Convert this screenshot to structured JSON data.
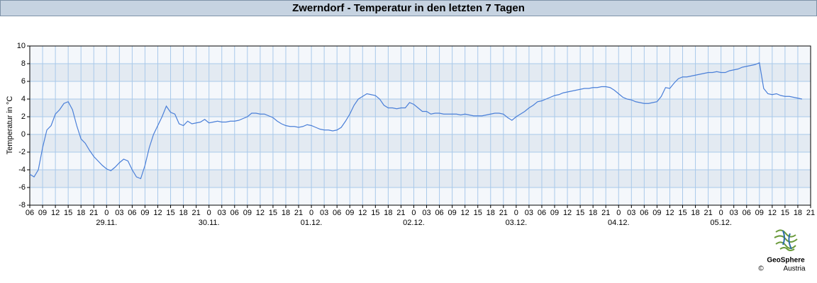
{
  "chart_data": {
    "type": "line",
    "title": "Zwerndorf - Temperatur in den letzten 7 Tagen",
    "ylabel": "Temperatur in °C",
    "color": "#4a7fd8",
    "grid": true,
    "ylim": [
      -8,
      10
    ],
    "yticks": [
      -8,
      -6,
      -4,
      -2,
      0,
      2,
      4,
      6,
      8,
      10
    ],
    "xlim": [
      6,
      189
    ],
    "xticks": [
      {
        "value": 6,
        "label": "06"
      },
      {
        "value": 9,
        "label": "09"
      },
      {
        "value": 12,
        "label": "12"
      },
      {
        "value": 15,
        "label": "15"
      },
      {
        "value": 18,
        "label": "18"
      },
      {
        "value": 21,
        "label": "21"
      },
      {
        "value": 24,
        "label": "0"
      },
      {
        "value": 27,
        "label": "03"
      },
      {
        "value": 30,
        "label": "06"
      },
      {
        "value": 33,
        "label": "09"
      },
      {
        "value": 36,
        "label": "12"
      },
      {
        "value": 39,
        "label": "15"
      },
      {
        "value": 42,
        "label": "18"
      },
      {
        "value": 45,
        "label": "21"
      },
      {
        "value": 48,
        "label": "0"
      },
      {
        "value": 51,
        "label": "03"
      },
      {
        "value": 54,
        "label": "06"
      },
      {
        "value": 57,
        "label": "09"
      },
      {
        "value": 60,
        "label": "12"
      },
      {
        "value": 63,
        "label": "15"
      },
      {
        "value": 66,
        "label": "18"
      },
      {
        "value": 69,
        "label": "21"
      },
      {
        "value": 72,
        "label": "0"
      },
      {
        "value": 75,
        "label": "03"
      },
      {
        "value": 78,
        "label": "06"
      },
      {
        "value": 81,
        "label": "09"
      },
      {
        "value": 84,
        "label": "12"
      },
      {
        "value": 87,
        "label": "15"
      },
      {
        "value": 90,
        "label": "18"
      },
      {
        "value": 93,
        "label": "21"
      },
      {
        "value": 96,
        "label": "0"
      },
      {
        "value": 99,
        "label": "03"
      },
      {
        "value": 102,
        "label": "06"
      },
      {
        "value": 105,
        "label": "09"
      },
      {
        "value": 108,
        "label": "12"
      },
      {
        "value": 111,
        "label": "15"
      },
      {
        "value": 114,
        "label": "18"
      },
      {
        "value": 117,
        "label": "21"
      },
      {
        "value": 120,
        "label": "0"
      },
      {
        "value": 123,
        "label": "03"
      },
      {
        "value": 126,
        "label": "06"
      },
      {
        "value": 129,
        "label": "09"
      },
      {
        "value": 132,
        "label": "12"
      },
      {
        "value": 135,
        "label": "15"
      },
      {
        "value": 138,
        "label": "18"
      },
      {
        "value": 141,
        "label": "21"
      },
      {
        "value": 144,
        "label": "0"
      },
      {
        "value": 147,
        "label": "03"
      },
      {
        "value": 150,
        "label": "06"
      },
      {
        "value": 153,
        "label": "09"
      },
      {
        "value": 156,
        "label": "12"
      },
      {
        "value": 159,
        "label": "15"
      },
      {
        "value": 162,
        "label": "18"
      },
      {
        "value": 165,
        "label": "21"
      },
      {
        "value": 168,
        "label": "0"
      },
      {
        "value": 171,
        "label": "03"
      },
      {
        "value": 174,
        "label": "06"
      },
      {
        "value": 177,
        "label": "09"
      },
      {
        "value": 180,
        "label": "12"
      },
      {
        "value": 183,
        "label": "15"
      },
      {
        "value": 186,
        "label": "18"
      },
      {
        "value": 189,
        "label": "21"
      }
    ],
    "xdates": [
      {
        "value": 24,
        "label": "29.11."
      },
      {
        "value": 48,
        "label": "30.11."
      },
      {
        "value": 72,
        "label": "01.12."
      },
      {
        "value": 96,
        "label": "02.12."
      },
      {
        "value": 120,
        "label": "03.12."
      },
      {
        "value": 144,
        "label": "04.12."
      },
      {
        "value": 168,
        "label": "05.12."
      }
    ],
    "x": [
      6,
      7,
      8,
      9,
      10,
      11,
      12,
      13,
      14,
      15,
      16,
      17,
      18,
      19,
      20,
      21,
      22,
      23,
      24,
      25,
      26,
      27,
      28,
      29,
      30,
      31,
      32,
      33,
      34,
      35,
      36,
      37,
      38,
      39,
      40,
      41,
      42,
      43,
      44,
      45,
      46,
      47,
      48,
      49,
      50,
      51,
      52,
      53,
      54,
      55,
      56,
      57,
      58,
      59,
      60,
      61,
      62,
      63,
      64,
      65,
      66,
      67,
      68,
      69,
      70,
      71,
      72,
      73,
      74,
      75,
      76,
      77,
      78,
      79,
      80,
      81,
      82,
      83,
      84,
      85,
      86,
      87,
      88,
      89,
      90,
      91,
      92,
      93,
      94,
      95,
      96,
      97,
      98,
      99,
      100,
      101,
      102,
      103,
      104,
      105,
      106,
      107,
      108,
      109,
      110,
      111,
      112,
      113,
      114,
      115,
      116,
      117,
      118,
      119,
      120,
      121,
      122,
      123,
      124,
      125,
      126,
      127,
      128,
      129,
      130,
      131,
      132,
      133,
      134,
      135,
      136,
      137,
      138,
      139,
      140,
      141,
      142,
      143,
      144,
      145,
      146,
      147,
      148,
      149,
      150,
      151,
      152,
      153,
      154,
      155,
      156,
      157,
      158,
      159,
      160,
      161,
      162,
      163,
      164,
      165,
      166,
      167,
      168,
      169,
      170,
      171,
      172,
      173,
      174,
      175,
      176,
      177,
      178,
      179,
      180,
      181,
      182,
      183,
      184,
      185,
      186,
      187
    ],
    "values": [
      -4.5,
      -4.8,
      -4,
      -1.5,
      0.5,
      1,
      2.3,
      2.8,
      3.5,
      3.7,
      2.8,
      1,
      -0.5,
      -1,
      -1.8,
      -2.5,
      -3,
      -3.5,
      -3.9,
      -4.1,
      -3.7,
      -3.2,
      -2.8,
      -3,
      -4,
      -4.8,
      -5,
      -3.5,
      -1.5,
      0,
      1,
      2,
      3.2,
      2.5,
      2.3,
      1.2,
      1,
      1.5,
      1.2,
      1.3,
      1.4,
      1.7,
      1.3,
      1.4,
      1.5,
      1.4,
      1.4,
      1.5,
      1.5,
      1.6,
      1.8,
      2.0,
      2.4,
      2.4,
      2.3,
      2.3,
      2.1,
      1.9,
      1.5,
      1.2,
      1.0,
      0.9,
      0.9,
      0.8,
      0.9,
      1.1,
      1.0,
      0.8,
      0.6,
      0.5,
      0.5,
      0.4,
      0.5,
      0.8,
      1.5,
      2.3,
      3.3,
      4.0,
      4.3,
      4.6,
      4.5,
      4.4,
      4.0,
      3.3,
      3.0,
      3.0,
      2.9,
      3.0,
      3.0,
      3.6,
      3.4,
      3.0,
      2.6,
      2.6,
      2.3,
      2.4,
      2.4,
      2.3,
      2.3,
      2.3,
      2.3,
      2.2,
      2.3,
      2.2,
      2.1,
      2.1,
      2.1,
      2.2,
      2.3,
      2.4,
      2.4,
      2.3,
      1.9,
      1.6,
      2.0,
      2.3,
      2.6,
      3.0,
      3.3,
      3.7,
      3.8,
      4.0,
      4.2,
      4.4,
      4.5,
      4.7,
      4.8,
      4.9,
      5.0,
      5.1,
      5.2,
      5.2,
      5.3,
      5.3,
      5.4,
      5.4,
      5.3,
      5.0,
      4.6,
      4.2,
      4.0,
      3.9,
      3.7,
      3.6,
      3.5,
      3.5,
      3.6,
      3.7,
      4.3,
      5.3,
      5.2,
      5.8,
      6.3,
      6.5,
      6.5,
      6.6,
      6.7,
      6.8,
      6.9,
      7.0,
      7.0,
      7.1,
      7.0,
      7.0,
      7.2,
      7.3,
      7.4,
      7.6,
      7.7,
      7.8,
      7.9,
      8.1,
      5.2,
      4.6,
      4.5,
      4.6,
      4.4,
      4.3,
      4.3,
      4.2,
      4.1,
      4.0
    ],
    "logo": {
      "name": "GeoSphere",
      "sub": "Austria",
      "copyright": "©"
    }
  }
}
